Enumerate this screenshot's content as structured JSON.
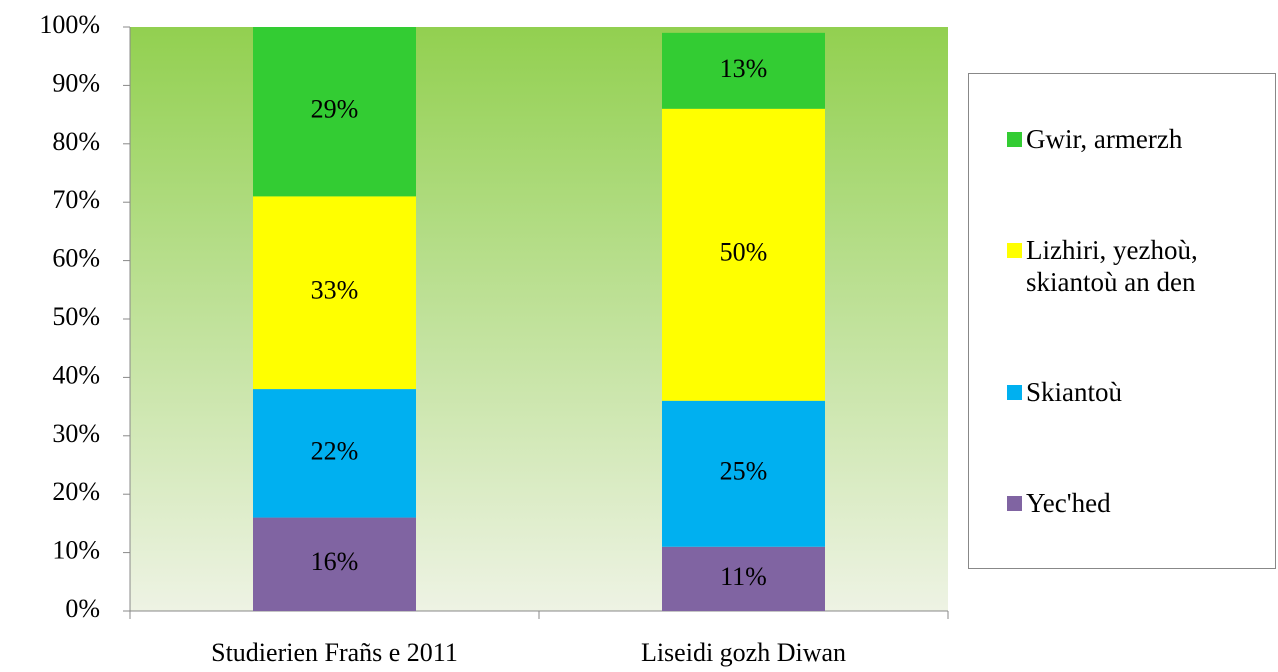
{
  "chart_data": {
    "type": "stacked-bar",
    "categories": [
      "Studierien Frañs e 2011",
      "Liseidi gozh Diwan"
    ],
    "series": [
      {
        "name": "Yec'hed",
        "color": "#8064a2",
        "values": [
          16,
          11
        ],
        "value_labels": [
          "16%",
          "11%"
        ]
      },
      {
        "name": "Skiantoù",
        "color": "#00b0f0",
        "values": [
          22,
          25
        ],
        "value_labels": [
          "22%",
          "25%"
        ]
      },
      {
        "name": "Lizhiri, yezhoù, skiantoù an den",
        "color": "#ffff00",
        "values": [
          33,
          50
        ],
        "value_labels": [
          "33%",
          "50%"
        ]
      },
      {
        "name": "Gwir, armerzh",
        "color": "#33cc33",
        "values": [
          29,
          13
        ],
        "value_labels": [
          "29%",
          "13%"
        ]
      }
    ],
    "ylim": [
      0,
      100
    ],
    "yticks": [
      {
        "value": 0,
        "label": "0%"
      },
      {
        "value": 10,
        "label": "10%"
      },
      {
        "value": 20,
        "label": "20%"
      },
      {
        "value": 30,
        "label": "30%"
      },
      {
        "value": 40,
        "label": "40%"
      },
      {
        "value": 50,
        "label": "50%"
      },
      {
        "value": 60,
        "label": "60%"
      },
      {
        "value": 70,
        "label": "70%"
      },
      {
        "value": 80,
        "label": "80%"
      },
      {
        "value": 90,
        "label": "90%"
      },
      {
        "value": 100,
        "label": "100%"
      }
    ],
    "legend": "right"
  }
}
